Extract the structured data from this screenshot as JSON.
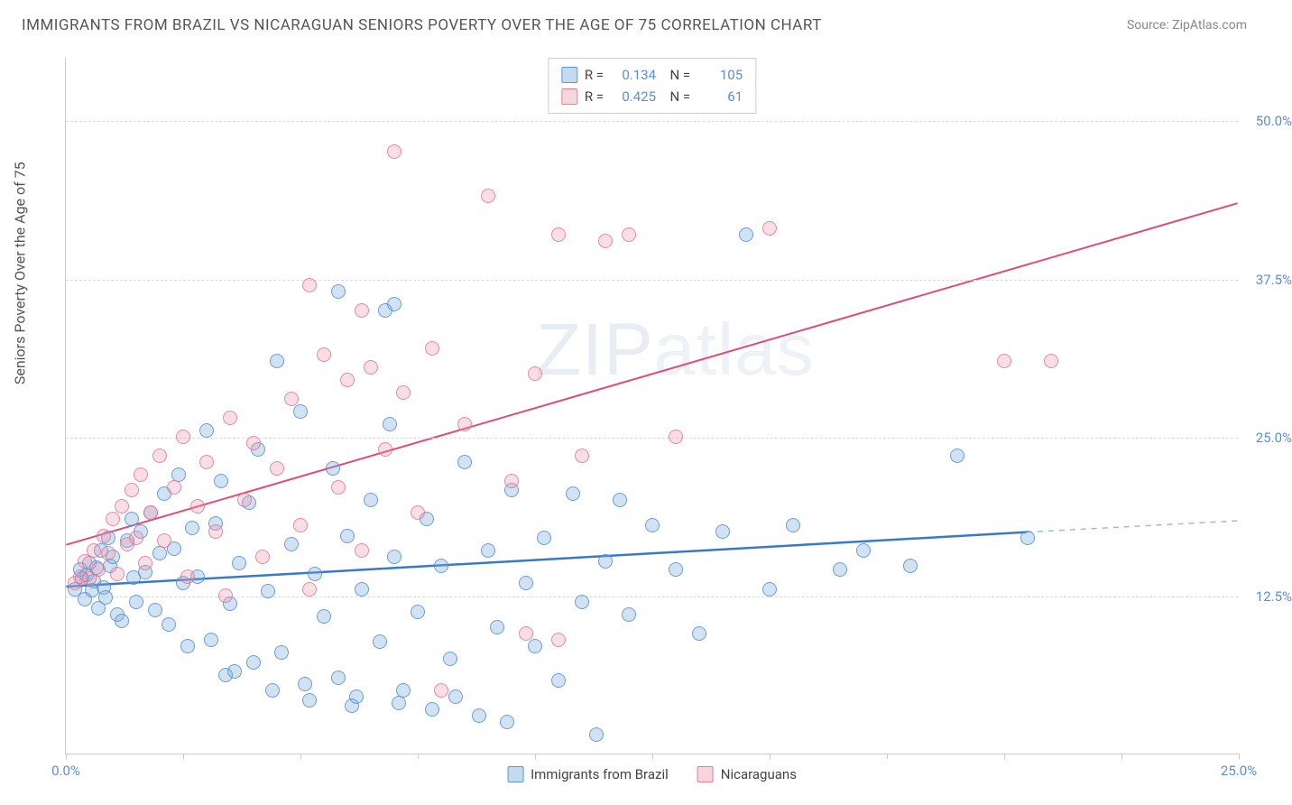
{
  "title": "IMMIGRANTS FROM BRAZIL VS NICARAGUAN SENIORS POVERTY OVER THE AGE OF 75 CORRELATION CHART",
  "source": "Source: ZipAtlas.com",
  "y_axis_label": "Seniors Poverty Over the Age of 75",
  "watermark_a": "ZIP",
  "watermark_b": "atlas",
  "chart": {
    "type": "scatter",
    "xlim": [
      0,
      25
    ],
    "ylim": [
      0,
      55
    ],
    "x_ticks": [
      0,
      2.5,
      5,
      7.5,
      10,
      12.5,
      15,
      17.5,
      20,
      22.5,
      25
    ],
    "x_tick_labels": {
      "0": "0.0%",
      "25": "25.0%"
    },
    "y_ticks": [
      12.5,
      25.0,
      37.5,
      50.0
    ],
    "y_tick_labels": [
      "12.5%",
      "25.0%",
      "37.5%",
      "50.0%"
    ],
    "grid_color": "#dddddd",
    "axis_color": "#cccccc",
    "label_color": "#5b8fd6",
    "series": [
      {
        "name": "Immigrants from Brazil",
        "color_fill": "rgba(122,172,222,0.35)",
        "color_stroke": "rgba(82,142,210,0.8)",
        "line_color": "#3a78c9",
        "R": "0.134",
        "N": "105",
        "trend": {
          "x1": 0,
          "y1": 13.2,
          "x2": 20.5,
          "y2": 17.5,
          "x2_ext": 25,
          "y2_ext": 18.4
        },
        "points": [
          [
            0.2,
            13.0
          ],
          [
            0.3,
            14.5
          ],
          [
            0.35,
            13.8
          ],
          [
            0.4,
            12.2
          ],
          [
            0.45,
            14.1
          ],
          [
            0.5,
            15.0
          ],
          [
            0.55,
            12.9
          ],
          [
            0.6,
            13.6
          ],
          [
            0.65,
            14.7
          ],
          [
            0.7,
            11.5
          ],
          [
            0.75,
            16.0
          ],
          [
            0.8,
            13.1
          ],
          [
            0.85,
            12.3
          ],
          [
            0.9,
            17.0
          ],
          [
            0.95,
            14.8
          ],
          [
            1.0,
            15.5
          ],
          [
            1.1,
            11.0
          ],
          [
            1.2,
            10.5
          ],
          [
            1.3,
            16.8
          ],
          [
            1.4,
            18.5
          ],
          [
            1.45,
            13.9
          ],
          [
            1.5,
            12.0
          ],
          [
            1.6,
            17.5
          ],
          [
            1.7,
            14.3
          ],
          [
            1.8,
            19.0
          ],
          [
            1.9,
            11.3
          ],
          [
            2.0,
            15.8
          ],
          [
            2.1,
            20.5
          ],
          [
            2.2,
            10.2
          ],
          [
            2.3,
            16.2
          ],
          [
            2.4,
            22.0
          ],
          [
            2.5,
            13.5
          ],
          [
            2.6,
            8.5
          ],
          [
            2.7,
            17.8
          ],
          [
            2.8,
            14.0
          ],
          [
            3.0,
            25.5
          ],
          [
            3.1,
            9.0
          ],
          [
            3.2,
            18.2
          ],
          [
            3.3,
            21.5
          ],
          [
            3.5,
            11.8
          ],
          [
            3.6,
            6.5
          ],
          [
            3.7,
            15.0
          ],
          [
            3.9,
            19.8
          ],
          [
            4.0,
            7.2
          ],
          [
            4.1,
            24.0
          ],
          [
            4.3,
            12.8
          ],
          [
            4.5,
            31.0
          ],
          [
            4.6,
            8.0
          ],
          [
            4.8,
            16.5
          ],
          [
            5.0,
            27.0
          ],
          [
            5.1,
            5.5
          ],
          [
            5.3,
            14.2
          ],
          [
            5.5,
            10.8
          ],
          [
            5.7,
            22.5
          ],
          [
            5.8,
            6.0
          ],
          [
            5.8,
            36.5
          ],
          [
            6.0,
            17.2
          ],
          [
            6.2,
            4.5
          ],
          [
            6.3,
            13.0
          ],
          [
            6.5,
            20.0
          ],
          [
            6.7,
            8.8
          ],
          [
            6.8,
            35.0
          ],
          [
            6.9,
            26.0
          ],
          [
            7.0,
            15.5
          ],
          [
            7.0,
            35.5
          ],
          [
            7.2,
            5.0
          ],
          [
            7.5,
            11.2
          ],
          [
            7.7,
            18.5
          ],
          [
            7.8,
            3.5
          ],
          [
            8.0,
            14.8
          ],
          [
            8.2,
            7.5
          ],
          [
            8.5,
            23.0
          ],
          [
            8.8,
            3.0
          ],
          [
            9.0,
            16.0
          ],
          [
            9.2,
            10.0
          ],
          [
            9.4,
            2.5
          ],
          [
            9.5,
            20.8
          ],
          [
            9.8,
            13.5
          ],
          [
            10.0,
            8.5
          ],
          [
            10.2,
            17.0
          ],
          [
            10.5,
            5.8
          ],
          [
            10.8,
            20.5
          ],
          [
            11.0,
            12.0
          ],
          [
            11.3,
            1.5
          ],
          [
            11.5,
            15.2
          ],
          [
            11.8,
            20.0
          ],
          [
            12.0,
            11.0
          ],
          [
            12.5,
            18.0
          ],
          [
            13.0,
            14.5
          ],
          [
            13.5,
            9.5
          ],
          [
            14.0,
            17.5
          ],
          [
            14.5,
            41.0
          ],
          [
            15.0,
            13.0
          ],
          [
            15.5,
            18.0
          ],
          [
            16.5,
            14.5
          ],
          [
            17.0,
            16.0
          ],
          [
            18.0,
            14.8
          ],
          [
            19.0,
            23.5
          ],
          [
            20.5,
            17.0
          ],
          [
            3.4,
            6.2
          ],
          [
            4.4,
            5.0
          ],
          [
            5.2,
            4.2
          ],
          [
            6.1,
            3.8
          ],
          [
            7.1,
            4.0
          ],
          [
            8.3,
            4.5
          ]
        ]
      },
      {
        "name": "Nicaraguans",
        "color_fill": "rgba(235,150,170,0.3)",
        "color_stroke": "rgba(225,110,140,0.75)",
        "line_color": "#e04c7a",
        "R": "0.425",
        "N": "61",
        "trend": {
          "x1": 0,
          "y1": 16.5,
          "x2": 25,
          "y2": 43.5
        },
        "points": [
          [
            0.2,
            13.5
          ],
          [
            0.3,
            14.0
          ],
          [
            0.4,
            15.2
          ],
          [
            0.5,
            13.8
          ],
          [
            0.6,
            16.0
          ],
          [
            0.7,
            14.5
          ],
          [
            0.8,
            17.2
          ],
          [
            0.9,
            15.8
          ],
          [
            1.0,
            18.5
          ],
          [
            1.1,
            14.2
          ],
          [
            1.2,
            19.5
          ],
          [
            1.3,
            16.5
          ],
          [
            1.4,
            20.8
          ],
          [
            1.5,
            17.0
          ],
          [
            1.6,
            22.0
          ],
          [
            1.7,
            15.0
          ],
          [
            1.8,
            19.0
          ],
          [
            2.0,
            23.5
          ],
          [
            2.1,
            16.8
          ],
          [
            2.3,
            21.0
          ],
          [
            2.5,
            25.0
          ],
          [
            2.6,
            14.0
          ],
          [
            2.8,
            19.5
          ],
          [
            3.0,
            23.0
          ],
          [
            3.2,
            17.5
          ],
          [
            3.4,
            12.5
          ],
          [
            3.5,
            26.5
          ],
          [
            3.8,
            20.0
          ],
          [
            4.0,
            24.5
          ],
          [
            4.2,
            15.5
          ],
          [
            4.5,
            22.5
          ],
          [
            4.8,
            28.0
          ],
          [
            5.0,
            18.0
          ],
          [
            5.2,
            37.0
          ],
          [
            5.2,
            13.0
          ],
          [
            5.5,
            31.5
          ],
          [
            5.8,
            21.0
          ],
          [
            6.0,
            29.5
          ],
          [
            6.3,
            16.0
          ],
          [
            6.3,
            35.0
          ],
          [
            6.5,
            30.5
          ],
          [
            6.8,
            24.0
          ],
          [
            7.0,
            47.5
          ],
          [
            7.2,
            28.5
          ],
          [
            7.5,
            19.0
          ],
          [
            7.8,
            32.0
          ],
          [
            8.0,
            5.0
          ],
          [
            8.5,
            26.0
          ],
          [
            9.0,
            44.0
          ],
          [
            9.5,
            21.5
          ],
          [
            9.8,
            9.5
          ],
          [
            10.0,
            30.0
          ],
          [
            10.5,
            41.0
          ],
          [
            10.5,
            9.0
          ],
          [
            11.0,
            23.5
          ],
          [
            11.5,
            40.5
          ],
          [
            12.0,
            41.0
          ],
          [
            13.0,
            25.0
          ],
          [
            15.0,
            41.5
          ],
          [
            20.0,
            31.0
          ],
          [
            21.0,
            31.0
          ]
        ]
      }
    ]
  },
  "legend_bottom": [
    {
      "label": "Immigrants from Brazil",
      "class": "blue"
    },
    {
      "label": "Nicaraguans",
      "class": "pink"
    }
  ]
}
